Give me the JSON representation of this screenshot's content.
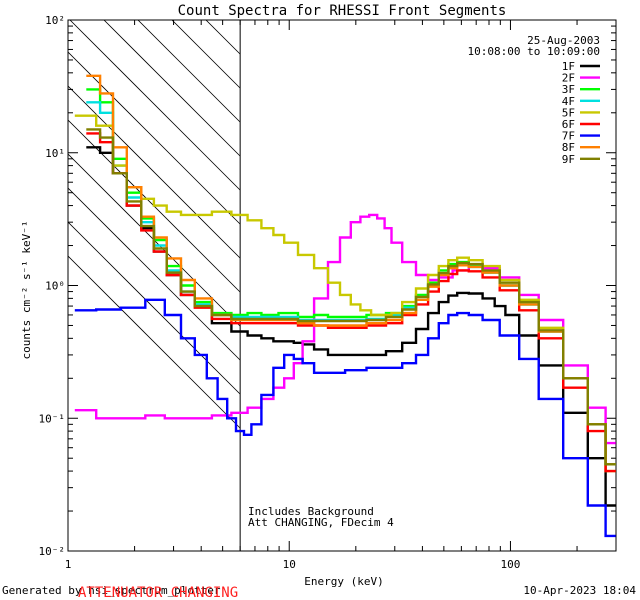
{
  "chart_data": {
    "type": "line",
    "title": "Count Spectra for RHESSI Front Segments",
    "xlabel": "Energy (keV)",
    "ylabel": "counts cm⁻² s⁻¹ keV⁻¹",
    "xscale": "log",
    "yscale": "log",
    "xlim": [
      1,
      300
    ],
    "ylim": [
      0.01,
      100
    ],
    "x_ticks": [
      "1",
      "10",
      "100"
    ],
    "y_ticks": [
      "10⁻²",
      "10⁻¹",
      "10⁰",
      "10¹",
      "10²"
    ],
    "date": "25-Aug-2003",
    "time_range": "10:08:00 to 10:09:00",
    "notes": [
      "Includes Background",
      "Att CHANGING, FDecim 4"
    ],
    "footer_left": "Generated by hsi_spectrum_plotter",
    "footer_warning": "ATTENUATOR CHANGING",
    "footer_right": "10-Apr-2023 18:04",
    "hatch_region_keV": [
      1,
      6
    ],
    "series": [
      {
        "name": "1F",
        "color": "#000000",
        "x": [
          1.3,
          1.5,
          1.7,
          2.0,
          2.3,
          2.6,
          3.0,
          3.5,
          4.0,
          5.0,
          6.0,
          7.0,
          8.0,
          9.0,
          10.0,
          11.0,
          12.0,
          14.0,
          16.0,
          20.0,
          25.0,
          30.0,
          35.0,
          40.0,
          45.0,
          50.0,
          55.0,
          60.0,
          70.0,
          80.0,
          90.0,
          100.0,
          120.0,
          150.0,
          200.0,
          250.0,
          290.0
        ],
        "y": [
          11,
          10,
          7,
          4,
          2.7,
          1.8,
          1.2,
          0.85,
          0.7,
          0.52,
          0.45,
          0.42,
          0.4,
          0.38,
          0.38,
          0.37,
          0.36,
          0.33,
          0.3,
          0.3,
          0.3,
          0.32,
          0.37,
          0.47,
          0.62,
          0.75,
          0.84,
          0.88,
          0.87,
          0.8,
          0.7,
          0.6,
          0.42,
          0.25,
          0.11,
          0.05,
          0.022
        ]
      },
      {
        "name": "2F",
        "color": "#ff00ff",
        "x": [
          1.2,
          1.5,
          2.0,
          2.5,
          3.0,
          4.0,
          5.0,
          6.0,
          7.0,
          8.0,
          9.0,
          10.0,
          11.0,
          12.0,
          14.0,
          16.0,
          18.0,
          20.0,
          22.0,
          24.0,
          26.0,
          28.0,
          30.0,
          35.0,
          40.0,
          45.0,
          50.0,
          60.0,
          70.0,
          80.0,
          100.0,
          120.0,
          150.0,
          200.0,
          250.0,
          290.0
        ],
        "y": [
          0.115,
          0.1,
          0.1,
          0.105,
          0.1,
          0.1,
          0.105,
          0.11,
          0.12,
          0.14,
          0.17,
          0.2,
          0.26,
          0.38,
          0.8,
          1.5,
          2.3,
          3.0,
          3.3,
          3.4,
          3.2,
          2.7,
          2.1,
          1.5,
          1.2,
          1.1,
          1.15,
          1.3,
          1.4,
          1.35,
          1.15,
          0.85,
          0.55,
          0.25,
          0.12,
          0.065
        ]
      },
      {
        "name": "3F",
        "color": "#00ff00",
        "x": [
          1.3,
          1.5,
          1.7,
          2.0,
          2.3,
          2.6,
          3.0,
          3.5,
          4.0,
          5.0,
          6.0,
          7.0,
          8.0,
          10.0,
          12.0,
          14.0,
          16.0,
          20.0,
          25.0,
          30.0,
          35.0,
          40.0,
          45.0,
          50.0,
          55.0,
          60.0,
          70.0,
          80.0,
          100.0,
          120.0,
          150.0,
          200.0,
          250.0,
          290.0
        ],
        "y": [
          30,
          24,
          9,
          5,
          3.2,
          2.2,
          1.4,
          1.0,
          0.75,
          0.62,
          0.6,
          0.62,
          0.6,
          0.62,
          0.58,
          0.6,
          0.58,
          0.58,
          0.6,
          0.62,
          0.7,
          0.85,
          1.05,
          1.3,
          1.45,
          1.5,
          1.4,
          1.25,
          1.0,
          0.72,
          0.45,
          0.2,
          0.09,
          0.045
        ]
      },
      {
        "name": "4F",
        "color": "#00e0e0",
        "x": [
          1.3,
          1.5,
          1.7,
          2.0,
          2.3,
          2.6,
          3.0,
          3.5,
          4.0,
          5.0,
          6.0,
          7.0,
          8.0,
          10.0,
          12.0,
          14.0,
          16.0,
          20.0,
          25.0,
          30.0,
          35.0,
          40.0,
          45.0,
          50.0,
          55.0,
          60.0,
          70.0,
          80.0,
          100.0,
          120.0,
          150.0,
          200.0,
          250.0,
          290.0
        ],
        "y": [
          24,
          20,
          8,
          4.6,
          3.0,
          2.0,
          1.3,
          0.9,
          0.72,
          0.6,
          0.58,
          0.58,
          0.58,
          0.58,
          0.55,
          0.55,
          0.55,
          0.55,
          0.56,
          0.6,
          0.68,
          0.82,
          1.0,
          1.22,
          1.38,
          1.45,
          1.38,
          1.25,
          1.0,
          0.72,
          0.45,
          0.2,
          0.09,
          0.045
        ]
      },
      {
        "name": "5F",
        "color": "#c8c800",
        "x": [
          1.2,
          1.5,
          1.7,
          2.0,
          2.3,
          2.6,
          3.0,
          3.5,
          4.0,
          5.0,
          6.0,
          7.0,
          8.0,
          9.0,
          10.0,
          12.0,
          14.0,
          16.0,
          18.0,
          20.0,
          22.0,
          25.0,
          28.0,
          30.0,
          35.0,
          40.0,
          45.0,
          50.0,
          55.0,
          60.0,
          70.0,
          80.0,
          100.0,
          120.0,
          150.0,
          200.0,
          250.0,
          290.0
        ],
        "y": [
          19,
          16,
          8,
          5.5,
          4.5,
          4.0,
          3.6,
          3.4,
          3.4,
          3.6,
          3.4,
          3.1,
          2.7,
          2.4,
          2.1,
          1.7,
          1.35,
          1.05,
          0.85,
          0.72,
          0.65,
          0.6,
          0.6,
          0.62,
          0.75,
          0.95,
          1.2,
          1.4,
          1.55,
          1.62,
          1.55,
          1.4,
          1.1,
          0.78,
          0.48,
          0.2,
          0.09,
          0.04
        ]
      },
      {
        "name": "6F",
        "color": "#ff0000",
        "x": [
          1.3,
          1.5,
          1.7,
          2.0,
          2.3,
          2.6,
          3.0,
          3.5,
          4.0,
          5.0,
          6.0,
          7.0,
          8.0,
          10.0,
          12.0,
          14.0,
          16.0,
          20.0,
          25.0,
          30.0,
          35.0,
          40.0,
          45.0,
          50.0,
          55.0,
          60.0,
          70.0,
          80.0,
          100.0,
          120.0,
          150.0,
          200.0,
          250.0,
          290.0
        ],
        "y": [
          14,
          12,
          7,
          4,
          2.6,
          1.8,
          1.2,
          0.85,
          0.68,
          0.56,
          0.52,
          0.52,
          0.52,
          0.52,
          0.5,
          0.5,
          0.48,
          0.48,
          0.5,
          0.52,
          0.6,
          0.72,
          0.9,
          1.08,
          1.22,
          1.3,
          1.28,
          1.15,
          0.92,
          0.65,
          0.4,
          0.17,
          0.08,
          0.04
        ]
      },
      {
        "name": "7F",
        "color": "#0000ff",
        "x": [
          1.2,
          1.5,
          2.0,
          2.5,
          3.0,
          3.5,
          4.0,
          4.5,
          5.0,
          5.5,
          6.0,
          6.5,
          7.0,
          8.0,
          9.0,
          10.0,
          11.0,
          12.0,
          14.0,
          16.0,
          20.0,
          25.0,
          30.0,
          35.0,
          40.0,
          45.0,
          50.0,
          55.0,
          60.0,
          70.0,
          80.0,
          100.0,
          120.0,
          150.0,
          200.0,
          250.0,
          290.0
        ],
        "y": [
          0.65,
          0.66,
          0.68,
          0.78,
          0.6,
          0.4,
          0.3,
          0.2,
          0.14,
          0.1,
          0.08,
          0.075,
          0.09,
          0.15,
          0.24,
          0.3,
          0.28,
          0.26,
          0.22,
          0.22,
          0.23,
          0.24,
          0.24,
          0.26,
          0.3,
          0.4,
          0.52,
          0.6,
          0.62,
          0.6,
          0.55,
          0.42,
          0.28,
          0.14,
          0.05,
          0.022,
          0.013
        ]
      },
      {
        "name": "8F",
        "color": "#ff8000",
        "x": [
          1.3,
          1.5,
          1.7,
          2.0,
          2.3,
          2.6,
          3.0,
          3.5,
          4.0,
          5.0,
          6.0,
          7.0,
          8.0,
          10.0,
          12.0,
          14.0,
          16.0,
          20.0,
          25.0,
          30.0,
          35.0,
          40.0,
          45.0,
          50.0,
          55.0,
          60.0,
          70.0,
          80.0,
          100.0,
          120.0,
          150.0,
          200.0,
          250.0,
          290.0
        ],
        "y": [
          38,
          28,
          11,
          5.5,
          3.3,
          2.3,
          1.6,
          1.1,
          0.8,
          0.6,
          0.55,
          0.55,
          0.55,
          0.55,
          0.52,
          0.5,
          0.5,
          0.5,
          0.52,
          0.55,
          0.62,
          0.78,
          0.98,
          1.2,
          1.35,
          1.42,
          1.38,
          1.25,
          1.0,
          0.72,
          0.45,
          0.2,
          0.09,
          0.045
        ]
      },
      {
        "name": "9F",
        "color": "#808000",
        "x": [
          1.3,
          1.5,
          1.7,
          2.0,
          2.3,
          2.6,
          3.0,
          3.5,
          4.0,
          5.0,
          6.0,
          7.0,
          8.0,
          10.0,
          12.0,
          14.0,
          16.0,
          20.0,
          25.0,
          30.0,
          35.0,
          40.0,
          45.0,
          50.0,
          55.0,
          60.0,
          70.0,
          80.0,
          100.0,
          120.0,
          150.0,
          200.0,
          250.0,
          290.0
        ],
        "y": [
          15,
          13,
          7,
          4.3,
          2.8,
          1.9,
          1.25,
          0.9,
          0.7,
          0.6,
          0.56,
          0.56,
          0.56,
          0.56,
          0.54,
          0.54,
          0.54,
          0.54,
          0.55,
          0.58,
          0.66,
          0.82,
          1.02,
          1.24,
          1.4,
          1.48,
          1.45,
          1.3,
          1.05,
          0.75,
          0.46,
          0.2,
          0.09,
          0.045
        ]
      }
    ]
  }
}
